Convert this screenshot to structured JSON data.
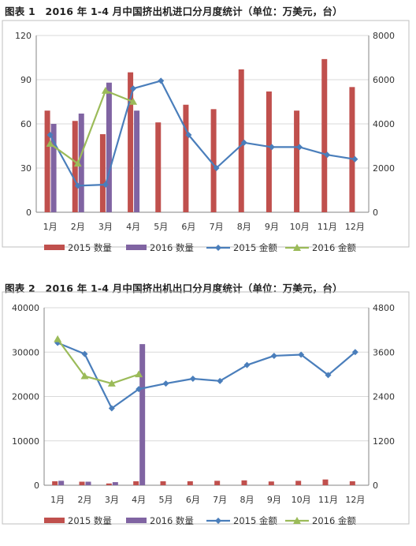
{
  "chart_data": [
    {
      "type": "bar",
      "title": "图表 1　2016 年 1-4 月中国挤出机进口分月度统计（单位：万美元，台）",
      "categories": [
        "1月",
        "2月",
        "3月",
        "4月",
        "5月",
        "6月",
        "7月",
        "8月",
        "9月",
        "10月",
        "11月",
        "12月"
      ],
      "ylim": [
        0,
        120
      ],
      "yticks": [
        "0",
        "30",
        "60",
        "90",
        "120"
      ],
      "y2lim": [
        0,
        8000
      ],
      "y2ticks": [
        "0",
        "2000",
        "4000",
        "6000",
        "8000"
      ],
      "grid": true,
      "legend": "bottom",
      "series": [
        {
          "name": "2015 数量",
          "kind": "bar",
          "axis": "left",
          "color": "#c0504d",
          "values": [
            69,
            62,
            53,
            95,
            61,
            73,
            70,
            97,
            82,
            69,
            104,
            85
          ]
        },
        {
          "name": "2016 数量",
          "kind": "bar",
          "axis": "left",
          "color": "#8064a2",
          "values": [
            60,
            67,
            88,
            69,
            null,
            null,
            null,
            null,
            null,
            null,
            null,
            null
          ]
        },
        {
          "name": "2015 金额",
          "kind": "line",
          "axis": "right",
          "color": "#4a7ebb",
          "marker": "diamond",
          "values": [
            3500,
            1200,
            1250,
            5600,
            5950,
            3500,
            2000,
            3150,
            2950,
            2950,
            2600,
            2400
          ]
        },
        {
          "name": "2016 金额",
          "kind": "line",
          "axis": "right",
          "color": "#9bbb59",
          "marker": "triangle",
          "values": [
            3100,
            2200,
            5500,
            5000,
            null,
            null,
            null,
            null,
            null,
            null,
            null,
            null
          ]
        }
      ]
    },
    {
      "type": "bar",
      "title": "图表 2　2016 年 1-4 月中国挤出机出口分月度统计（单位：万美元，台）",
      "categories": [
        "1月",
        "2月",
        "3月",
        "4月",
        "5月",
        "6月",
        "7月",
        "8月",
        "9月",
        "10月",
        "11月",
        "12月"
      ],
      "ylim": [
        0,
        40000
      ],
      "yticks": [
        "0",
        "10000",
        "20000",
        "30000",
        "40000"
      ],
      "y2lim": [
        0,
        4800
      ],
      "y2ticks": [
        "0",
        "1200",
        "2400",
        "3600",
        "4800"
      ],
      "grid": true,
      "legend": "bottom",
      "series": [
        {
          "name": "2015 数量",
          "kind": "bar",
          "axis": "left",
          "color": "#c0504d",
          "values": [
            900,
            800,
            400,
            900,
            900,
            900,
            1000,
            1100,
            850,
            1000,
            1300,
            900
          ]
        },
        {
          "name": "2016 数量",
          "kind": "bar",
          "axis": "left",
          "color": "#8064a2",
          "values": [
            1000,
            800,
            700,
            31800,
            null,
            null,
            null,
            null,
            null,
            null,
            null,
            null
          ]
        },
        {
          "name": "2015 金额",
          "kind": "line",
          "axis": "right",
          "color": "#4a7ebb",
          "marker": "diamond",
          "values": [
            3850,
            3550,
            2080,
            2600,
            2750,
            2880,
            2820,
            3250,
            3500,
            3530,
            2980,
            3600
          ]
        },
        {
          "name": "2016 金额",
          "kind": "line",
          "axis": "right",
          "color": "#9bbb59",
          "marker": "triangle",
          "values": [
            3950,
            2950,
            2750,
            3000,
            null,
            null,
            null,
            null,
            null,
            null,
            null,
            null
          ]
        }
      ]
    }
  ]
}
